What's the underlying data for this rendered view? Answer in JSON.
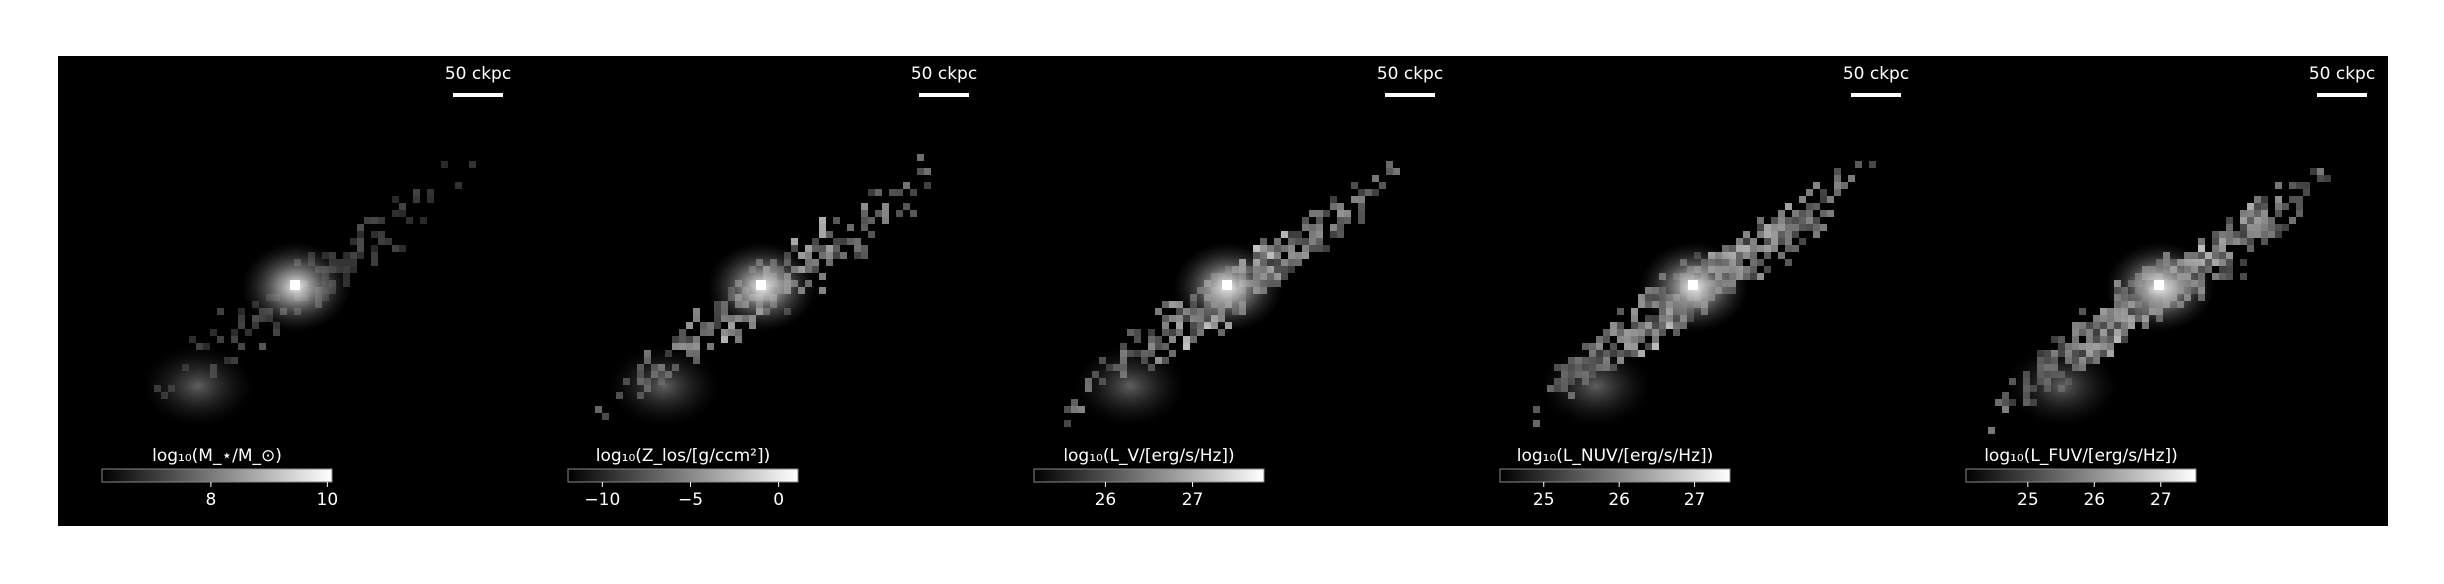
{
  "figure": {
    "panels": [
      {
        "scale_bar": "50 ckpc",
        "colorbar": {
          "label": "log₁₀(M_⋆/M_⊙)",
          "lim": [
            6.13,
            10.08
          ],
          "ticks": [
            8,
            10
          ]
        }
      },
      {
        "scale_bar": "50 ckpc",
        "colorbar": {
          "label": "log₁₀(Z_los/[g/ccm²])",
          "lim": [
            -11.95,
            1.1
          ],
          "ticks": [
            {
              "value": -10,
              "label": "−10"
            },
            {
              "value": -5,
              "label": "−5"
            },
            0
          ]
        }
      },
      {
        "scale_bar": "50 ckpc",
        "colorbar": {
          "label": "log₁₀(L_V/[erg/s/Hz])",
          "lim": [
            25.18,
            27.82
          ],
          "ticks": [
            26,
            27
          ]
        }
      },
      {
        "scale_bar": "50 ckpc",
        "colorbar": {
          "label": "log₁₀(L_NUV/[erg/s/Hz])",
          "lim": [
            24.42,
            27.47
          ],
          "ticks": [
            25,
            26,
            27
          ]
        }
      },
      {
        "scale_bar": "50 ckpc",
        "colorbar": {
          "label": "log₁₀(L_FUV/[erg/s/Hz])",
          "lim": [
            24.07,
            27.53
          ],
          "ticks": [
            25,
            26,
            27
          ]
        }
      }
    ]
  }
}
